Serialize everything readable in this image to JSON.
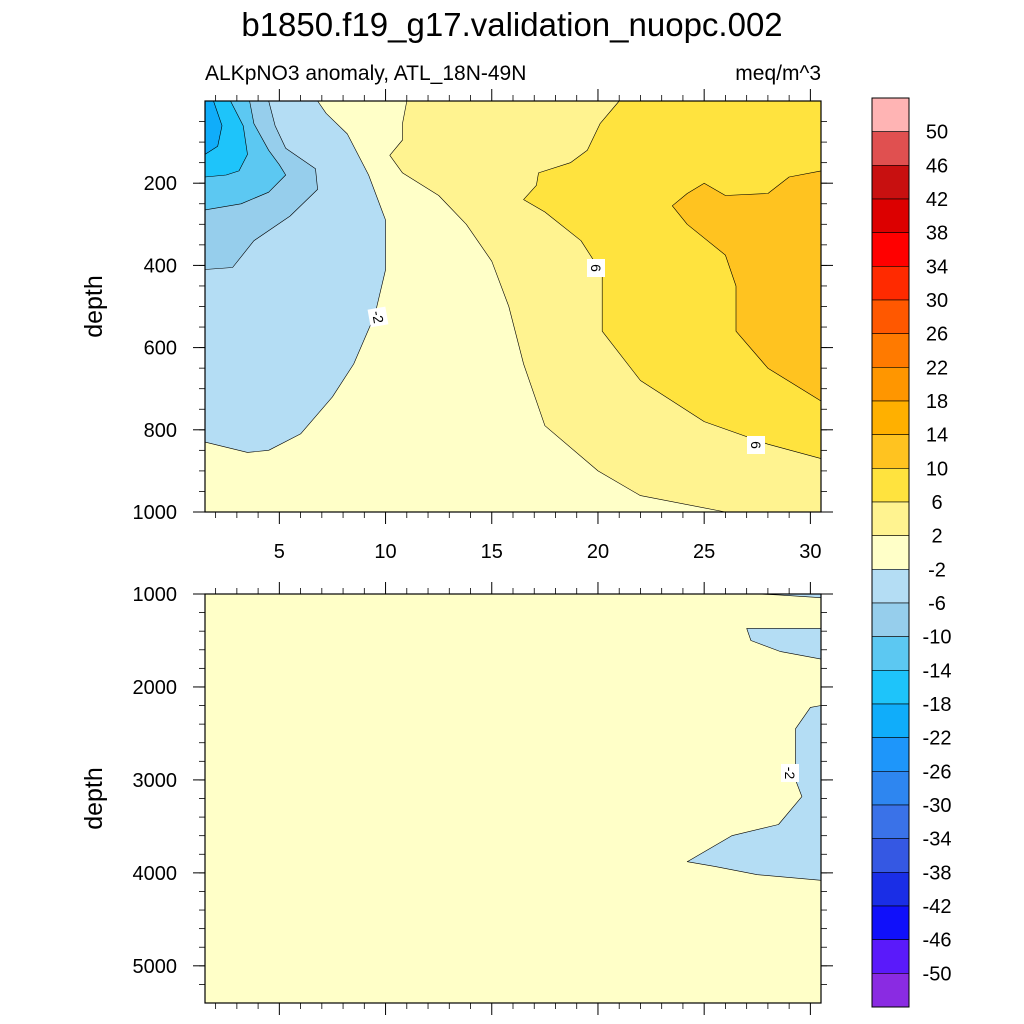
{
  "title": "b1850.f19_g17.validation_nuopc.002",
  "subtitle_left": "ALKpNO3 anomaly, ATL_18N-49N",
  "subtitle_right": "meq/m^3",
  "colors": {
    "levels": [
      "#8A2BE2",
      "#5A1AFA",
      "#1010FA",
      "#1A2EE6",
      "#3558E3",
      "#3A72E8",
      "#2E86F0",
      "#1E96FA",
      "#10ADFA",
      "#1EC4FA",
      "#5CC8F2",
      "#96CEEC",
      "#B4DDF4",
      "#FFFFC8",
      "#FFF390",
      "#FFE33E",
      "#FFC320",
      "#FFB000",
      "#FF9600",
      "#FF7A00",
      "#FF5800",
      "#FF2A00",
      "#FF0000",
      "#DC0000",
      "#C81010",
      "#E05050",
      "#FFB4B4"
    ]
  },
  "chart_data": [
    {
      "type": "contour",
      "panel": "top",
      "x_range": [
        1.5,
        30.5
      ],
      "xticks": [
        "5",
        "10",
        "15",
        "20",
        "25",
        "30"
      ],
      "ylabel": "depth",
      "y_range": [
        0,
        1000
      ],
      "yticks": [
        "200",
        "400",
        "600",
        "800",
        "1000"
      ],
      "contour_labels": [
        "-2",
        "6",
        "6"
      ],
      "fill_regions": [
        {
          "level": "-2 to 2",
          "points": [
            [
              1.5,
              0
            ],
            [
              30.5,
              0
            ],
            [
              30.5,
              1000
            ],
            [
              1.5,
              1000
            ]
          ]
        },
        {
          "level": "2 to 6",
          "points": [
            [
              11,
              0
            ],
            [
              30.5,
              0
            ],
            [
              30.5,
              1000
            ],
            [
              26,
              1000
            ],
            [
              22,
              960
            ],
            [
              20,
              900
            ],
            [
              17.5,
              790
            ],
            [
              16.5,
              640
            ],
            [
              15.8,
              500
            ],
            [
              15,
              390
            ],
            [
              13.8,
              300
            ],
            [
              12.5,
              230
            ],
            [
              10.8,
              175
            ],
            [
              10.2,
              132
            ],
            [
              10.8,
              95
            ],
            [
              10.8,
              55
            ],
            [
              11,
              0
            ]
          ]
        },
        {
          "level": "6 to 10",
          "points": [
            [
              30.5,
              0
            ],
            [
              30.5,
              870
            ],
            [
              28,
              835
            ],
            [
              25,
              780
            ],
            [
              22,
              680
            ],
            [
              20.2,
              560
            ],
            [
              20.2,
              420
            ],
            [
              19.2,
              340
            ],
            [
              17.5,
              270
            ],
            [
              16.5,
              240
            ],
            [
              17.1,
              205
            ],
            [
              17.2,
              175
            ],
            [
              18.7,
              150
            ],
            [
              19.5,
              120
            ],
            [
              20.1,
              55
            ],
            [
              21,
              0
            ]
          ]
        },
        {
          "level": "10 to 14",
          "points": [
            [
              30.5,
              170
            ],
            [
              30.5,
              730
            ],
            [
              28,
              650
            ],
            [
              26.5,
              560
            ],
            [
              26.5,
              450
            ],
            [
              26,
              375
            ],
            [
              24.2,
              300
            ],
            [
              23.5,
              255
            ],
            [
              24.2,
              225
            ],
            [
              25,
              200
            ],
            [
              26,
              230
            ],
            [
              28,
              225
            ],
            [
              29,
              185
            ],
            [
              30.5,
              170
            ]
          ]
        },
        {
          "level": "-2 to -6",
          "points": [
            [
              1.5,
              0
            ],
            [
              6.8,
              0
            ],
            [
              7.2,
              30
            ],
            [
              8.2,
              80
            ],
            [
              9.2,
              180
            ],
            [
              10,
              290
            ],
            [
              10,
              410
            ],
            [
              9.5,
              520
            ],
            [
              8.5,
              640
            ],
            [
              7.5,
              720
            ],
            [
              6,
              810
            ],
            [
              4.5,
              850
            ],
            [
              3.5,
              855
            ],
            [
              1.5,
              830
            ]
          ]
        },
        {
          "level": "-6 to -10",
          "points": [
            [
              1.5,
              0
            ],
            [
              4.5,
              0
            ],
            [
              4.8,
              60
            ],
            [
              5.3,
              115
            ],
            [
              6,
              140
            ],
            [
              6.7,
              165
            ],
            [
              6.8,
              215
            ],
            [
              5.5,
              280
            ],
            [
              3.8,
              340
            ],
            [
              2.8,
              405
            ],
            [
              1.5,
              410
            ]
          ]
        },
        {
          "level": "-10 to -14",
          "points": [
            [
              1.5,
              0
            ],
            [
              3.6,
              0
            ],
            [
              3.8,
              55
            ],
            [
              4.5,
              120
            ],
            [
              5,
              155
            ],
            [
              5.3,
              180
            ],
            [
              4.5,
              222
            ],
            [
              3.2,
              250
            ],
            [
              1.5,
              265
            ]
          ]
        },
        {
          "level": "-14 to -18",
          "points": [
            [
              1.5,
              0
            ],
            [
              2.7,
              0
            ],
            [
              3.3,
              60
            ],
            [
              3.5,
              130
            ],
            [
              3.1,
              170
            ],
            [
              2.5,
              180
            ],
            [
              1.5,
              185
            ]
          ]
        },
        {
          "level": "-18 to -22",
          "points": [
            [
              1.5,
              0
            ],
            [
              1.9,
              0
            ],
            [
              2.3,
              60
            ],
            [
              2.1,
              110
            ],
            [
              1.5,
              130
            ]
          ]
        }
      ]
    },
    {
      "type": "contour",
      "panel": "bottom",
      "x_range": [
        1.5,
        30.5
      ],
      "ylabel": "depth",
      "y_range": [
        1000,
        5400
      ],
      "yticks": [
        "1000",
        "2000",
        "3000",
        "4000",
        "5000"
      ],
      "contour_labels": [
        "-2"
      ],
      "fill_regions": [
        {
          "level": "-2 to 2",
          "points": [
            [
              1.5,
              1000
            ],
            [
              30.5,
              1000
            ],
            [
              30.5,
              5400
            ],
            [
              1.5,
              5400
            ]
          ]
        },
        {
          "level": "-2 to -6",
          "points": [
            [
              30.5,
              2200
            ],
            [
              30,
              2220
            ],
            [
              29.3,
              2450
            ],
            [
              29.3,
              3000
            ],
            [
              29.6,
              3180
            ],
            [
              28.5,
              3480
            ],
            [
              26.3,
              3600
            ],
            [
              24.2,
              3880
            ],
            [
              25.5,
              3930
            ],
            [
              27.5,
              4020
            ],
            [
              30.5,
              4080
            ]
          ]
        },
        {
          "level": "-2 to -6",
          "points": [
            [
              27,
              1370
            ],
            [
              30.5,
              1370
            ],
            [
              30.5,
              1700
            ],
            [
              28.6,
              1620
            ],
            [
              27.2,
              1500
            ]
          ]
        },
        {
          "level": "-2 to -6",
          "points": [
            [
              27.5,
              1000
            ],
            [
              30.5,
              1000
            ],
            [
              30.5,
              1040
            ],
            [
              28.5,
              1010
            ]
          ]
        }
      ]
    },
    {
      "type": "colorbar",
      "labels": [
        "50",
        "46",
        "42",
        "38",
        "34",
        "30",
        "26",
        "22",
        "18",
        "14",
        "10",
        "6",
        "2",
        "-2",
        "-6",
        "-10",
        "-14",
        "-18",
        "-22",
        "-26",
        "-30",
        "-34",
        "-38",
        "-42",
        "-46",
        "-50"
      ]
    }
  ]
}
